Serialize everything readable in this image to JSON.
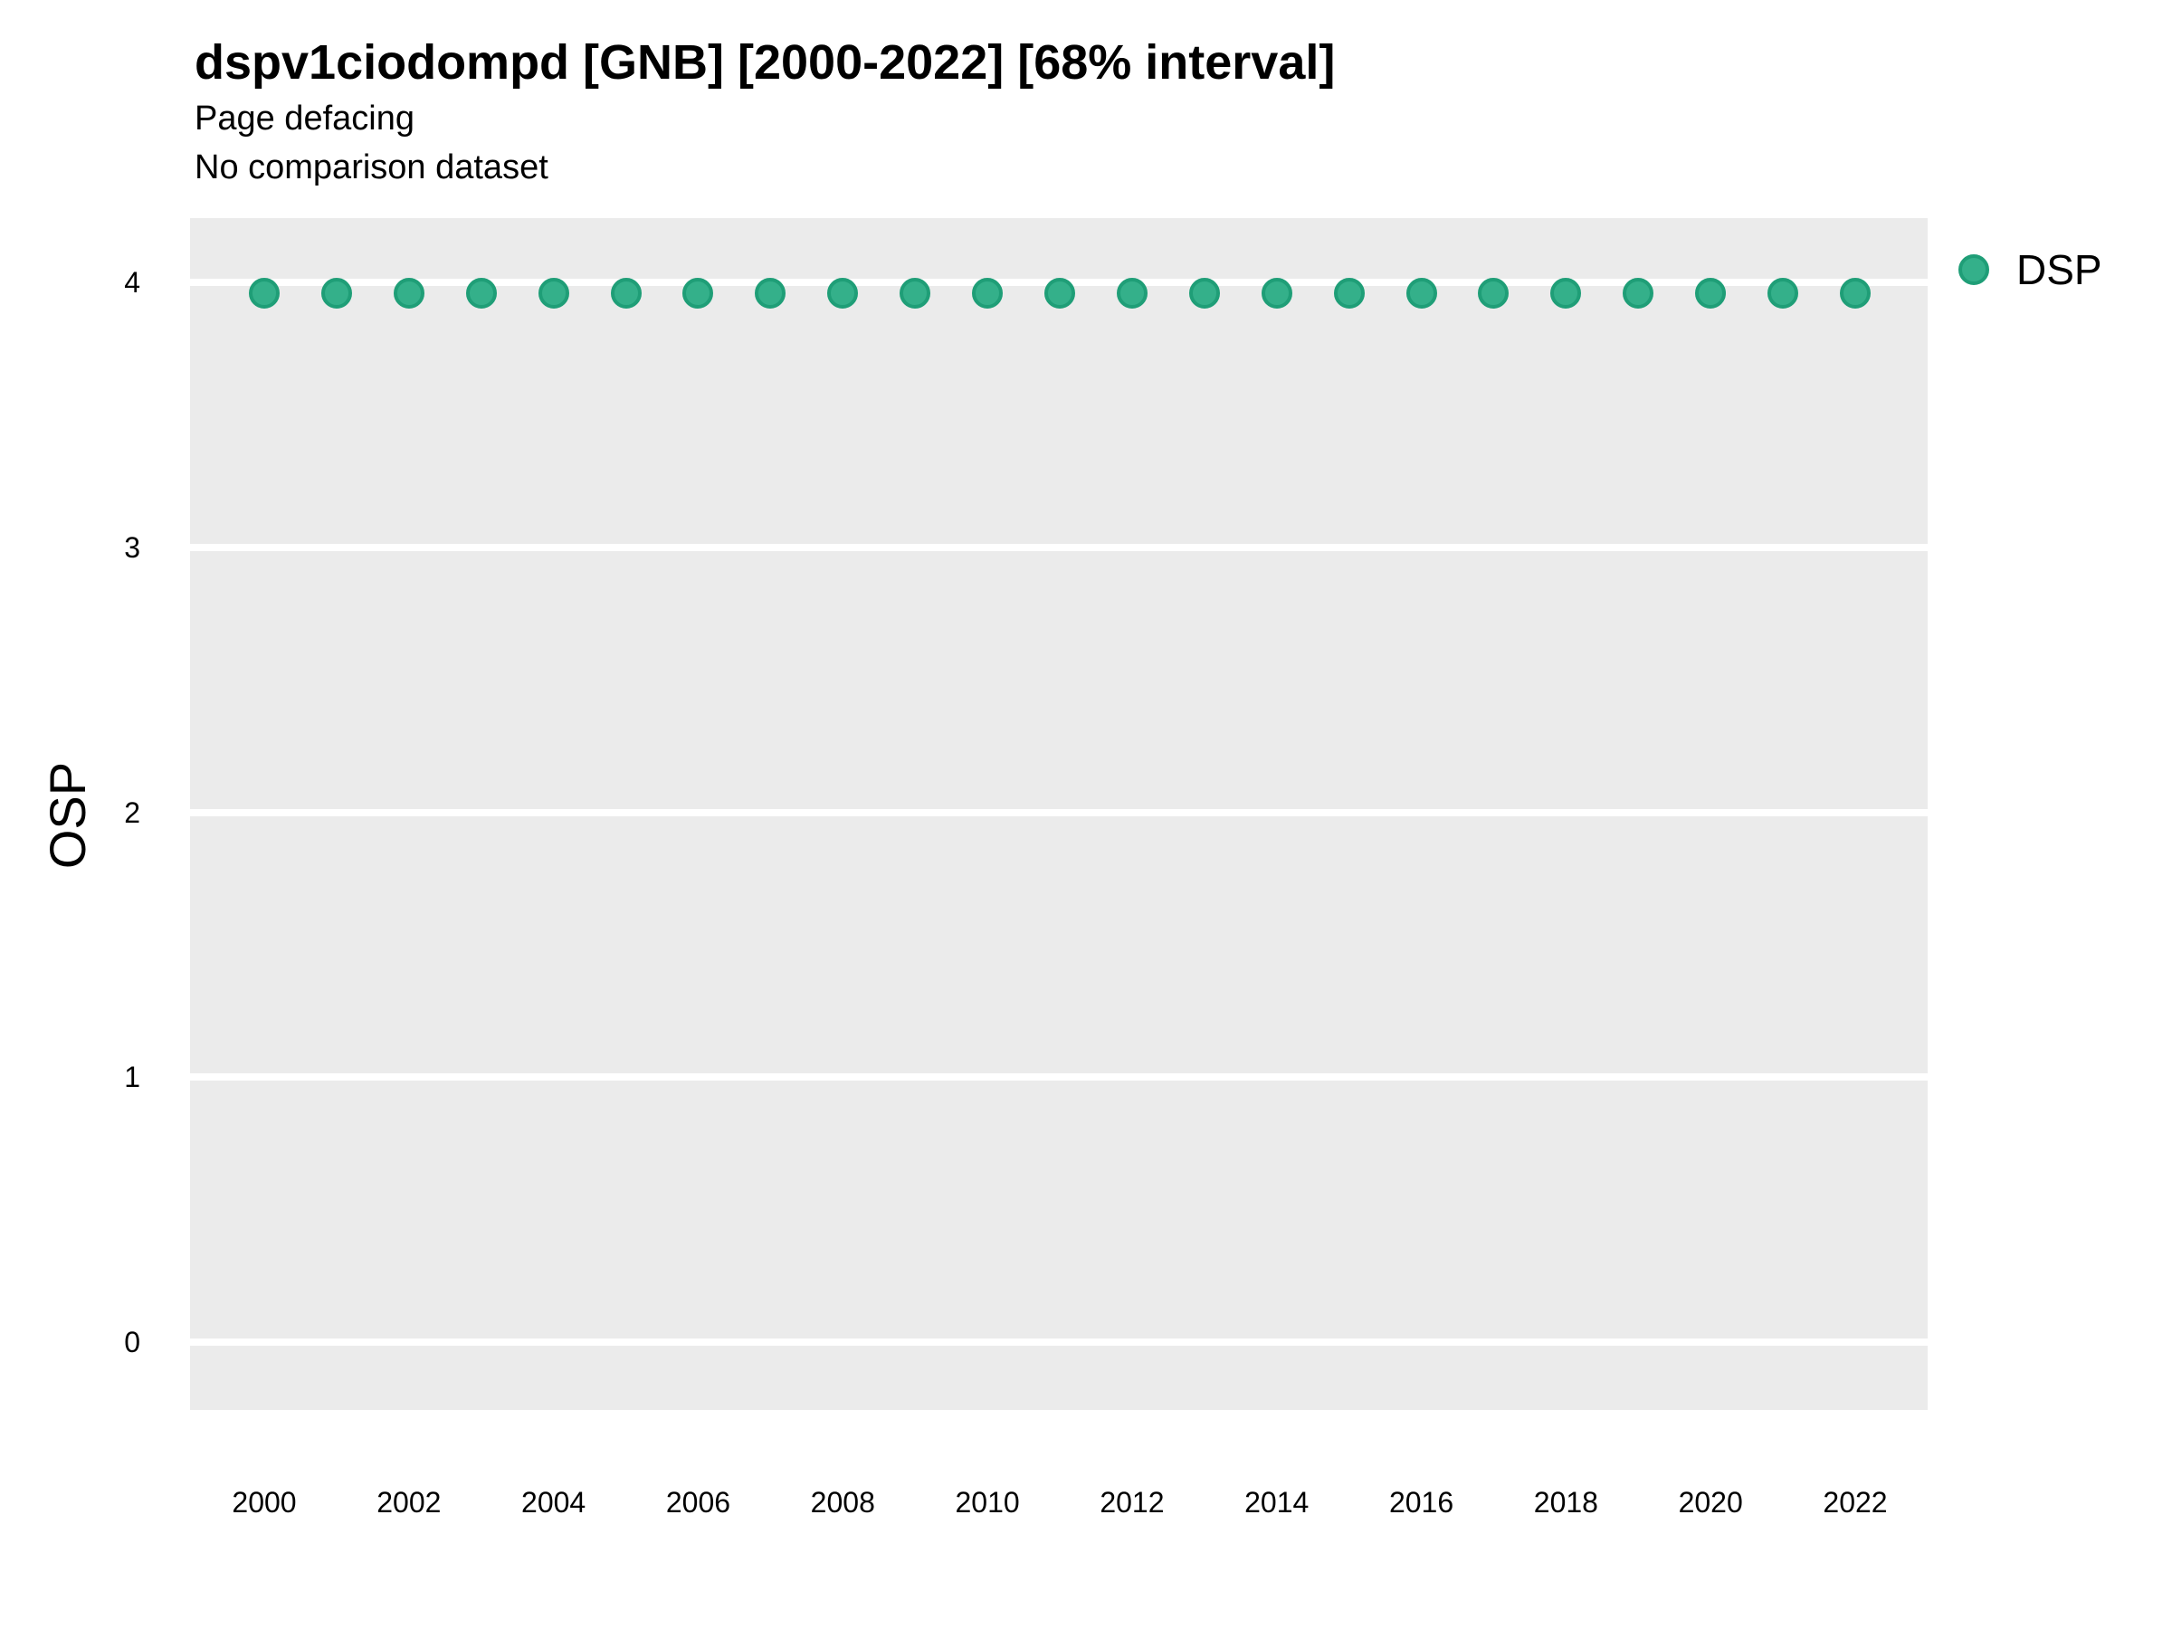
{
  "chart_data": {
    "type": "scatter",
    "title": "dspv1ciodompd [GNB] [2000-2022] [68% interval]",
    "subtitle": "Page defacing",
    "annotation": "No comparison dataset",
    "xlabel": "",
    "ylabel": "OSP",
    "x": [
      2000,
      2001,
      2002,
      2003,
      2004,
      2005,
      2006,
      2007,
      2008,
      2009,
      2010,
      2011,
      2012,
      2013,
      2014,
      2015,
      2016,
      2017,
      2018,
      2019,
      2020,
      2021,
      2022
    ],
    "series": [
      {
        "name": "DSP",
        "values": [
          3.96,
          3.96,
          3.96,
          3.96,
          3.96,
          3.96,
          3.96,
          3.96,
          3.96,
          3.96,
          3.96,
          3.96,
          3.96,
          3.96,
          3.96,
          3.96,
          3.96,
          3.96,
          3.96,
          3.96,
          3.96,
          3.96,
          3.96
        ]
      }
    ],
    "y_ticks": [
      0,
      1,
      2,
      3,
      4
    ],
    "y_tick_labels": [
      "0",
      "1",
      "2",
      "3",
      "4"
    ],
    "x_ticks": [
      2000,
      2002,
      2004,
      2006,
      2008,
      2010,
      2012,
      2014,
      2016,
      2018,
      2020,
      2022
    ],
    "x_tick_labels": [
      "2000",
      "2002",
      "2004",
      "2006",
      "2008",
      "2010",
      "2012",
      "2014",
      "2016",
      "2018",
      "2020",
      "2022"
    ],
    "ylim": [
      -0.26,
      4.25
    ],
    "xlim": [
      1999,
      2023
    ],
    "grid": "horizontal-major-only",
    "legend": {
      "position": "right-top",
      "entries": [
        {
          "label": "DSP",
          "color": "#34b08a"
        }
      ]
    },
    "colors": {
      "panel_bg": "#ebebeb",
      "grid": "#ffffff",
      "point_fill": "#34b08a",
      "point_stroke": "#1f9e77",
      "text": "#000000"
    }
  }
}
